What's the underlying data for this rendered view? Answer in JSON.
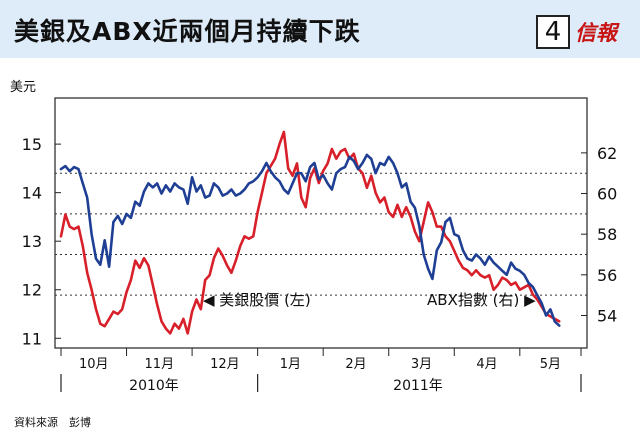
{
  "header": {
    "title": "美銀及ABX近兩個月持續下跌",
    "page_number": "4",
    "brand": "信報"
  },
  "source_note": "資料來源　彭博",
  "colors": {
    "header_bg": "#ddecf8",
    "red_series": "#d8202a",
    "blue_series": "#1e3f94",
    "brand": "#c81414"
  },
  "chart_data": {
    "type": "line",
    "left_axis": {
      "unit_label": "美元",
      "ticks": [
        11,
        12,
        13,
        14,
        15
      ],
      "range": [
        10.8,
        15.95
      ]
    },
    "right_axis": {
      "ticks": [
        54,
        56,
        58,
        60,
        62
      ],
      "range": [
        52.4,
        64.7
      ]
    },
    "x_axis": {
      "month_labels": [
        "10月",
        "11月",
        "12月",
        "1月",
        "2月",
        "3月",
        "4月",
        "5月"
      ],
      "year_labels": [
        "2010年",
        "2011年"
      ],
      "range_days": [
        0,
        238
      ]
    },
    "grid": "horizontal dotted at right-axis ticks 55, 57, 59, 61",
    "series": [
      {
        "name": "美銀股價 (左)",
        "axis": "left",
        "color": "#d8202a",
        "values": [
          [
            0,
            13.1
          ],
          [
            2,
            13.55
          ],
          [
            4,
            13.3
          ],
          [
            6,
            13.25
          ],
          [
            8,
            13.3
          ],
          [
            10,
            12.9
          ],
          [
            12,
            12.35
          ],
          [
            14,
            12.0
          ],
          [
            16,
            11.6
          ],
          [
            18,
            11.3
          ],
          [
            20,
            11.25
          ],
          [
            22,
            11.4
          ],
          [
            24,
            11.55
          ],
          [
            26,
            11.5
          ],
          [
            28,
            11.6
          ],
          [
            30,
            11.95
          ],
          [
            32,
            12.2
          ],
          [
            34,
            12.6
          ],
          [
            36,
            12.45
          ],
          [
            38,
            12.65
          ],
          [
            40,
            12.5
          ],
          [
            42,
            12.1
          ],
          [
            44,
            11.7
          ],
          [
            46,
            11.35
          ],
          [
            48,
            11.2
          ],
          [
            50,
            11.1
          ],
          [
            52,
            11.3
          ],
          [
            54,
            11.2
          ],
          [
            56,
            11.4
          ],
          [
            58,
            11.1
          ],
          [
            60,
            11.55
          ],
          [
            62,
            11.8
          ],
          [
            64,
            11.6
          ],
          [
            66,
            12.2
          ],
          [
            68,
            12.3
          ],
          [
            70,
            12.65
          ],
          [
            72,
            12.85
          ],
          [
            74,
            12.7
          ],
          [
            76,
            12.5
          ],
          [
            78,
            12.35
          ],
          [
            80,
            12.6
          ],
          [
            82,
            12.9
          ],
          [
            84,
            13.1
          ],
          [
            86,
            13.05
          ],
          [
            88,
            13.1
          ],
          [
            90,
            13.6
          ],
          [
            92,
            14.0
          ],
          [
            94,
            14.4
          ],
          [
            96,
            14.55
          ],
          [
            98,
            14.7
          ],
          [
            100,
            15.0
          ],
          [
            102,
            15.25
          ],
          [
            104,
            14.5
          ],
          [
            106,
            14.35
          ],
          [
            108,
            14.6
          ],
          [
            110,
            13.9
          ],
          [
            112,
            13.7
          ],
          [
            114,
            14.3
          ],
          [
            116,
            14.5
          ],
          [
            118,
            14.2
          ],
          [
            120,
            14.45
          ],
          [
            122,
            14.6
          ],
          [
            124,
            14.9
          ],
          [
            126,
            14.7
          ],
          [
            128,
            14.85
          ],
          [
            130,
            14.9
          ],
          [
            132,
            14.7
          ],
          [
            134,
            14.8
          ],
          [
            136,
            14.5
          ],
          [
            138,
            14.4
          ],
          [
            140,
            14.1
          ],
          [
            142,
            14.35
          ],
          [
            144,
            14.0
          ],
          [
            146,
            13.8
          ],
          [
            148,
            13.9
          ],
          [
            150,
            13.6
          ],
          [
            152,
            13.5
          ],
          [
            154,
            13.75
          ],
          [
            156,
            13.5
          ],
          [
            158,
            13.7
          ],
          [
            160,
            13.5
          ],
          [
            162,
            13.2
          ],
          [
            164,
            13.0
          ],
          [
            166,
            13.4
          ],
          [
            168,
            13.8
          ],
          [
            170,
            13.6
          ],
          [
            172,
            13.3
          ],
          [
            174,
            13.3
          ],
          [
            176,
            13.1
          ],
          [
            178,
            13.0
          ],
          [
            180,
            12.8
          ],
          [
            182,
            12.6
          ],
          [
            184,
            12.45
          ],
          [
            186,
            12.4
          ],
          [
            188,
            12.3
          ],
          [
            190,
            12.4
          ],
          [
            192,
            12.3
          ],
          [
            194,
            12.25
          ],
          [
            196,
            12.3
          ],
          [
            198,
            12.0
          ],
          [
            200,
            12.1
          ],
          [
            202,
            12.25
          ],
          [
            204,
            12.2
          ],
          [
            206,
            12.1
          ],
          [
            208,
            12.15
          ],
          [
            210,
            12.0
          ],
          [
            212,
            12.05
          ],
          [
            214,
            12.1
          ],
          [
            216,
            11.9
          ],
          [
            218,
            11.8
          ],
          [
            220,
            11.65
          ],
          [
            222,
            11.5
          ],
          [
            224,
            11.45
          ],
          [
            226,
            11.4
          ],
          [
            228,
            11.35
          ]
        ]
      },
      {
        "name": "ABX指數 (右)",
        "axis": "right",
        "color": "#1e3f94",
        "values": [
          [
            0,
            61.2
          ],
          [
            2,
            61.35
          ],
          [
            4,
            61.1
          ],
          [
            6,
            61.3
          ],
          [
            8,
            61.2
          ],
          [
            10,
            60.5
          ],
          [
            12,
            59.8
          ],
          [
            14,
            58.0
          ],
          [
            16,
            56.8
          ],
          [
            18,
            56.5
          ],
          [
            20,
            57.7
          ],
          [
            22,
            56.4
          ],
          [
            24,
            58.6
          ],
          [
            26,
            58.9
          ],
          [
            28,
            58.5
          ],
          [
            30,
            59.0
          ],
          [
            32,
            58.8
          ],
          [
            34,
            59.6
          ],
          [
            36,
            59.4
          ],
          [
            38,
            60.1
          ],
          [
            40,
            60.5
          ],
          [
            42,
            60.3
          ],
          [
            44,
            60.5
          ],
          [
            46,
            60.0
          ],
          [
            48,
            60.4
          ],
          [
            50,
            60.1
          ],
          [
            52,
            60.5
          ],
          [
            54,
            60.3
          ],
          [
            56,
            60.2
          ],
          [
            58,
            59.5
          ],
          [
            60,
            60.8
          ],
          [
            62,
            60.1
          ],
          [
            64,
            60.4
          ],
          [
            66,
            59.8
          ],
          [
            68,
            59.9
          ],
          [
            70,
            60.5
          ],
          [
            72,
            60.3
          ],
          [
            74,
            59.9
          ],
          [
            76,
            60.0
          ],
          [
            78,
            60.2
          ],
          [
            80,
            59.9
          ],
          [
            82,
            60.0
          ],
          [
            84,
            60.2
          ],
          [
            86,
            60.5
          ],
          [
            88,
            60.6
          ],
          [
            90,
            60.8
          ],
          [
            92,
            61.1
          ],
          [
            94,
            61.5
          ],
          [
            96,
            61.1
          ],
          [
            98,
            60.8
          ],
          [
            100,
            60.6
          ],
          [
            102,
            60.2
          ],
          [
            104,
            60.0
          ],
          [
            106,
            60.5
          ],
          [
            108,
            61.0
          ],
          [
            110,
            61.0
          ],
          [
            112,
            60.6
          ],
          [
            114,
            61.3
          ],
          [
            116,
            61.5
          ],
          [
            118,
            60.7
          ],
          [
            120,
            60.9
          ],
          [
            122,
            60.5
          ],
          [
            124,
            60.2
          ],
          [
            126,
            61.0
          ],
          [
            128,
            61.2
          ],
          [
            130,
            61.3
          ],
          [
            132,
            61.8
          ],
          [
            134,
            61.6
          ],
          [
            136,
            61.2
          ],
          [
            138,
            61.5
          ],
          [
            140,
            61.9
          ],
          [
            142,
            61.7
          ],
          [
            144,
            61.0
          ],
          [
            146,
            61.5
          ],
          [
            148,
            61.4
          ],
          [
            150,
            61.8
          ],
          [
            152,
            61.5
          ],
          [
            154,
            61.0
          ],
          [
            156,
            60.3
          ],
          [
            158,
            60.5
          ],
          [
            160,
            59.6
          ],
          [
            162,
            59.3
          ],
          [
            164,
            58.4
          ],
          [
            166,
            57.0
          ],
          [
            168,
            56.3
          ],
          [
            170,
            55.8
          ],
          [
            172,
            57.2
          ],
          [
            174,
            57.6
          ],
          [
            176,
            58.6
          ],
          [
            178,
            58.8
          ],
          [
            180,
            58.0
          ],
          [
            182,
            57.9
          ],
          [
            184,
            57.2
          ],
          [
            186,
            56.8
          ],
          [
            188,
            56.7
          ],
          [
            190,
            57.0
          ],
          [
            192,
            56.8
          ],
          [
            194,
            56.5
          ],
          [
            196,
            56.9
          ],
          [
            198,
            56.6
          ],
          [
            200,
            56.4
          ],
          [
            202,
            56.2
          ],
          [
            204,
            56.0
          ],
          [
            206,
            56.6
          ],
          [
            208,
            56.3
          ],
          [
            210,
            56.2
          ],
          [
            212,
            56.0
          ],
          [
            214,
            55.6
          ],
          [
            216,
            55.4
          ],
          [
            218,
            55.0
          ],
          [
            220,
            54.6
          ],
          [
            222,
            54.0
          ],
          [
            224,
            54.3
          ],
          [
            226,
            53.7
          ],
          [
            228,
            53.5
          ]
        ]
      }
    ],
    "annotations": [
      {
        "text": "◀ 美銀股價 (左)",
        "series": "美銀股價 (左)"
      },
      {
        "text": "ABX指數 (右) ▶",
        "series": "ABX指數 (右)"
      }
    ]
  }
}
